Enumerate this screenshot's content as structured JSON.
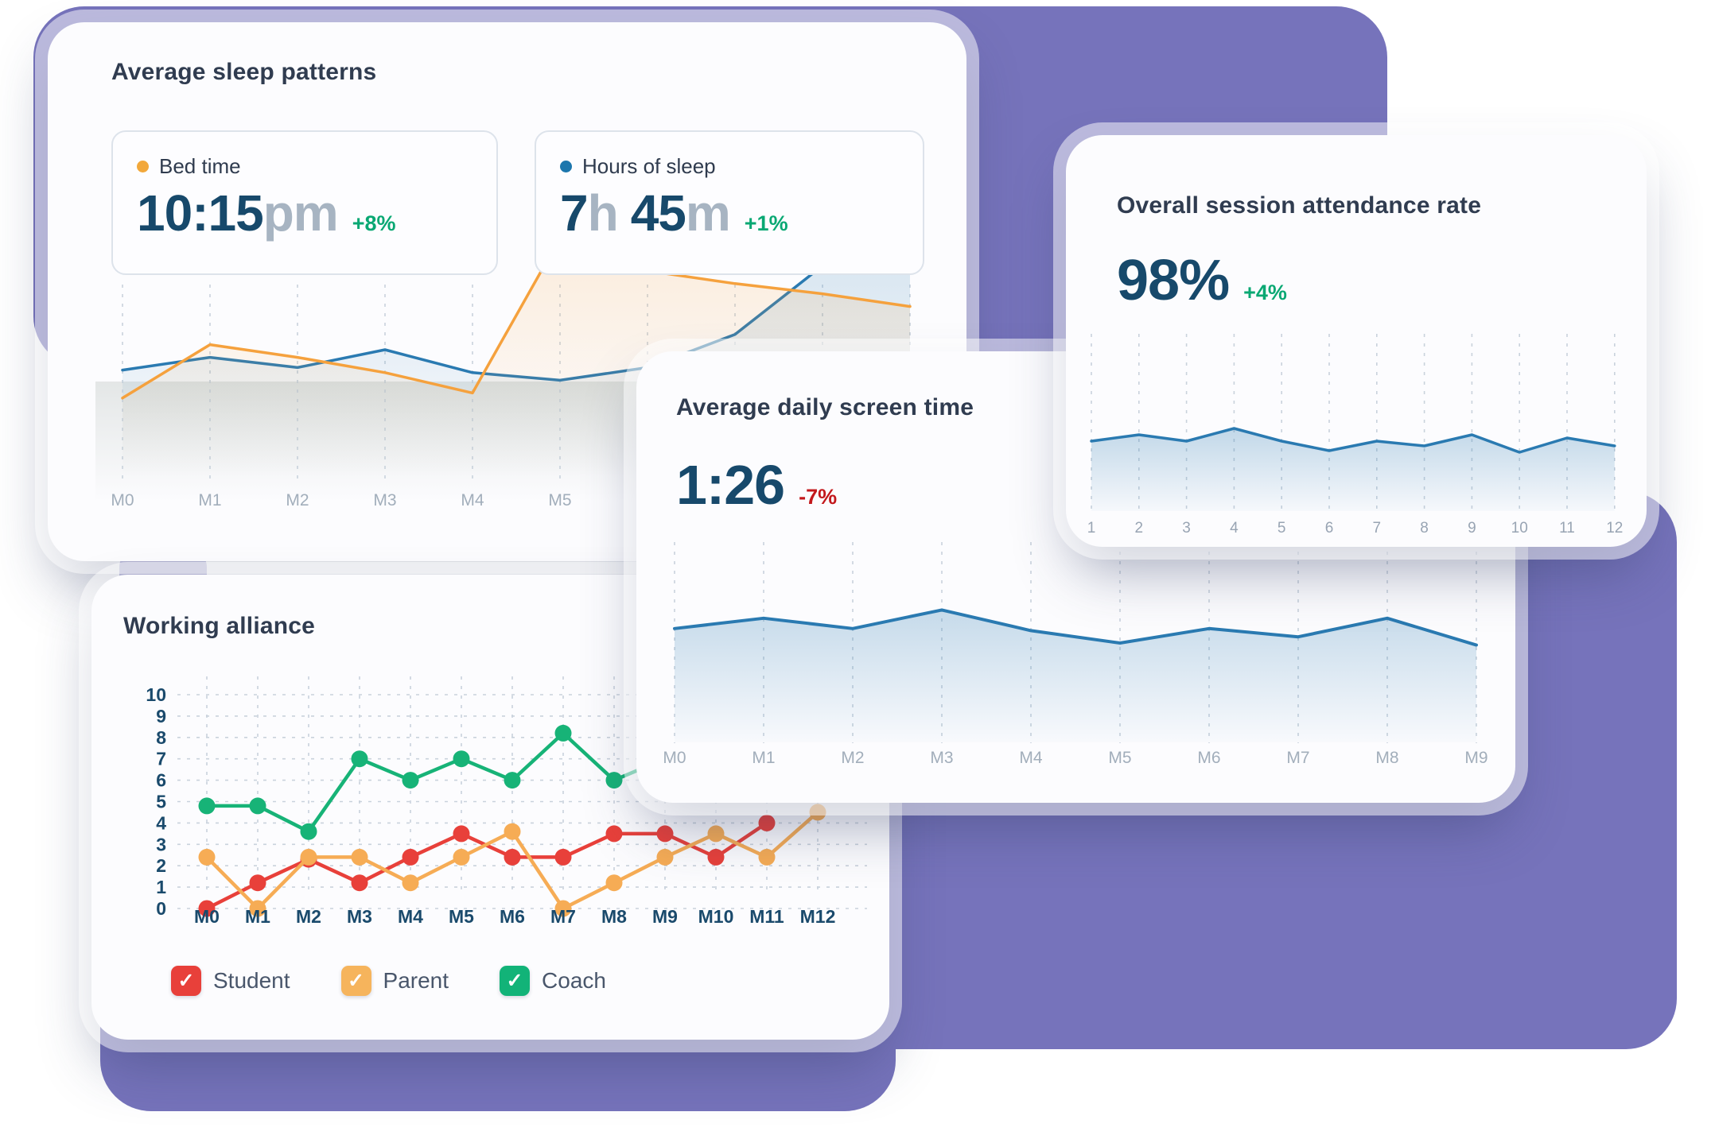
{
  "colors": {
    "background_blob": "#7673BB",
    "card_bg": "#FCFCFE",
    "navy_value": "#17496B",
    "gray_unit": "#A7B4C2",
    "title_text": "#303C50",
    "delta_positive": "#09A873",
    "delta_negative": "#C3181C",
    "chart_blue": "#2A7AB1",
    "chart_orange": "#F5A13D",
    "alliance_red": "#E8403A",
    "alliance_orange": "#F6AC55",
    "alliance_green": "#17B377"
  },
  "cards": {
    "sleep": {
      "title": "Average sleep patterns",
      "bed": {
        "label": "Bed time",
        "dot_color": "#F2A83B",
        "value": "10:15",
        "unit": "pm",
        "delta": "+8%"
      },
      "hours": {
        "label": "Hours of sleep",
        "dot_color": "#1C76AD",
        "v1": "7",
        "u1": "h",
        "v2": "45",
        "u2": "m",
        "delta": "+1%"
      }
    },
    "attendance": {
      "title": "Overall session attendance rate",
      "value": "98",
      "unit": "%",
      "delta": "+4%"
    },
    "screen": {
      "title": "Average daily screen time",
      "value": "1:26",
      "delta": "-7%"
    },
    "alliance": {
      "title": "Working alliance",
      "legend": [
        {
          "label": "Student",
          "color": "#E8403A",
          "check": "✓"
        },
        {
          "label": "Parent",
          "color": "#F6B45C",
          "check": "✓"
        },
        {
          "label": "Coach",
          "color": "#12B378",
          "check": "✓"
        }
      ]
    }
  },
  "chart_data": [
    {
      "id": "sleep_patterns",
      "type": "area",
      "title": "Average sleep patterns",
      "categories": [
        "M0",
        "M1",
        "M2",
        "M3",
        "M4",
        "M5",
        "M6",
        "M7",
        "M8",
        "M9"
      ],
      "series": [
        {
          "name": "Hours of sleep",
          "color": "#2A7AB1",
          "values": [
            42,
            47,
            43,
            50,
            41,
            38,
            43,
            56,
            83,
            100
          ]
        },
        {
          "name": "Bed time",
          "color": "#F5A13D",
          "values": [
            31,
            52,
            47,
            41,
            33,
            94,
            81,
            76,
            72,
            67
          ]
        }
      ],
      "ylim": [
        0,
        100
      ],
      "note": "relative scale, no y-axis shown; headline values 10:15pm bed time, 7h 45m sleep",
      "grid": "vertical-dashed",
      "legend_position": "stat-chips-above"
    },
    {
      "id": "attendance_rate",
      "type": "area",
      "title": "Overall session attendance rate",
      "headline": "98% +4%",
      "categories": [
        "1",
        "2",
        "3",
        "4",
        "5",
        "6",
        "7",
        "8",
        "9",
        "10",
        "11",
        "12"
      ],
      "values": [
        70,
        74,
        70,
        78,
        70,
        64,
        70,
        67,
        74,
        63,
        72,
        67
      ],
      "ylim": [
        0,
        100
      ],
      "note": "relative scale, no y-axis shown",
      "grid": "vertical-dashed"
    },
    {
      "id": "screen_time",
      "type": "area",
      "title": "Average daily screen time",
      "headline": "1:26 -7%",
      "categories": [
        "M0",
        "M1",
        "M2",
        "M3",
        "M4",
        "M5",
        "M6",
        "M7",
        "M8",
        "M9"
      ],
      "values": [
        62,
        67,
        62,
        71,
        61,
        55,
        62,
        58,
        67,
        54
      ],
      "ylim": [
        0,
        100
      ],
      "note": "relative scale, no y-axis shown",
      "grid": "vertical-dashed"
    },
    {
      "id": "working_alliance",
      "type": "line",
      "title": "Working alliance",
      "categories": [
        "M0",
        "M1",
        "M2",
        "M3",
        "M4",
        "M5",
        "M6",
        "M7",
        "M8",
        "M9",
        "M10",
        "M11",
        "M12"
      ],
      "y_ticks": [
        "10",
        "9",
        "8",
        "7",
        "6",
        "5",
        "4",
        "3",
        "2",
        "1",
        "0"
      ],
      "ylim": [
        0,
        10
      ],
      "series": [
        {
          "name": "Student",
          "color": "#E8403A",
          "values": [
            0,
            1.2,
            2.3,
            1.2,
            2.4,
            3.5,
            2.4,
            2.4,
            3.5,
            3.5,
            2.4,
            4
          ]
        },
        {
          "name": "Parent",
          "color": "#F6AC55",
          "values": [
            2.4,
            0,
            2.4,
            2.4,
            1.2,
            2.4,
            3.6,
            0,
            1.2,
            2.4,
            3.5,
            2.4,
            4.5
          ]
        },
        {
          "name": "Coach",
          "color": "#17B377",
          "values": [
            4.8,
            4.8,
            3.6,
            7,
            6,
            7,
            6,
            8.2,
            6,
            7
          ]
        }
      ],
      "grid": "both-dashed",
      "legend_position": "bottom",
      "note": "points from M9/M11 onward partially hidden behind overlapping card"
    }
  ]
}
